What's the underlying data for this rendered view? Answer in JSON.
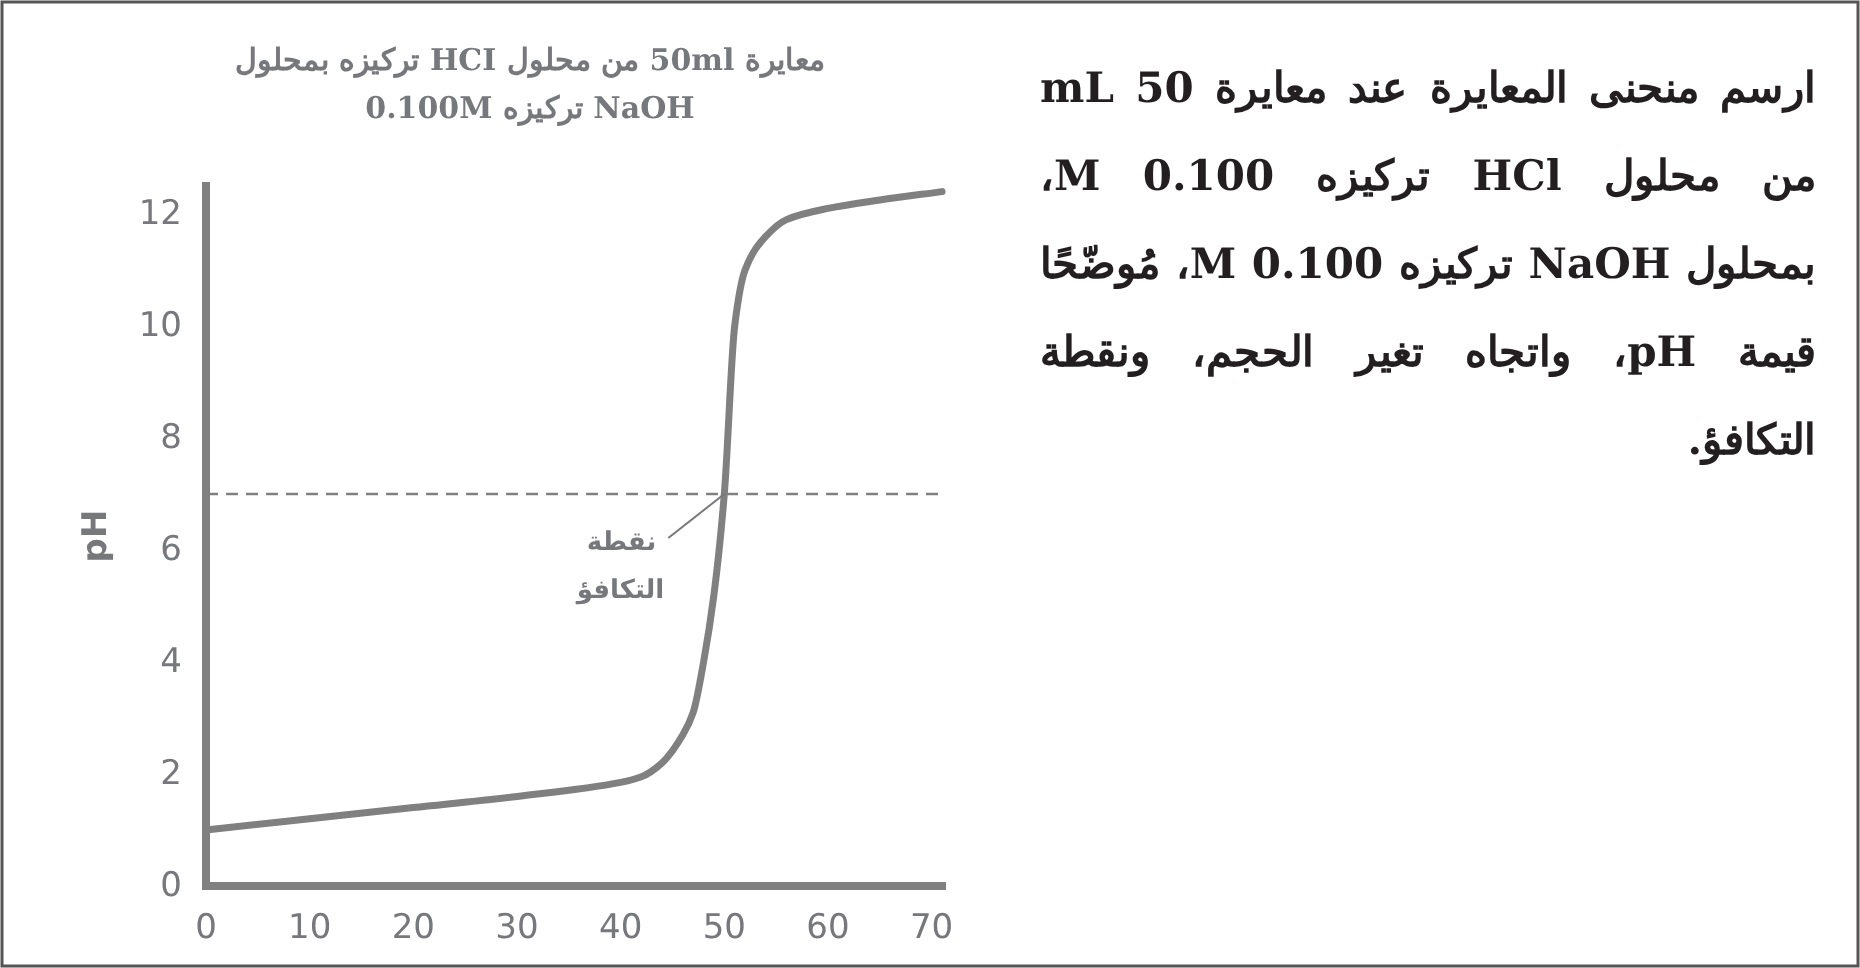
{
  "chart_data": {
    "type": "line",
    "title": "معايرة 50ml من محلول HCI تركيزه بمحلول NaOH تركيزه 0.100M",
    "ylabel": "pH",
    "x": [
      0,
      10,
      20,
      30,
      40,
      42,
      44,
      46,
      47,
      48,
      49,
      50,
      51,
      52,
      54,
      56,
      60,
      65,
      71
    ],
    "series": [
      {
        "color": "#808080",
        "values": [
          1.0,
          1.2,
          1.4,
          1.6,
          1.85,
          1.95,
          2.2,
          2.7,
          3.1,
          4.0,
          5.2,
          7.0,
          10.0,
          11.0,
          11.6,
          11.9,
          12.1,
          12.25,
          12.4
        ]
      }
    ],
    "xlim": [
      0,
      71
    ],
    "ylim": [
      0,
      12.5
    ],
    "xticks": [
      0,
      10,
      20,
      30,
      40,
      50,
      60,
      70
    ],
    "yticks": [
      0,
      2,
      4,
      6,
      8,
      10,
      12
    ],
    "ref_lines": [
      {
        "axis": "y",
        "value": 7,
        "color": "#808080",
        "line_style": "dashed"
      }
    ],
    "annotations": [
      {
        "text": "نقطة التكافؤ",
        "x": 50,
        "y": 7
      },
      "ارسم منحنى المعايرة عند معايرة 50 mL من محلول HCl تركيزه 0.100 M، بمحلول NaOH تركيزه 0.100 M، مُوضّحًا قيمة pH، واتجاه تغير الحجم، ونقطة التكافؤ."
    ],
    "grid": false,
    "marker": "none",
    "line_style": "solid"
  }
}
